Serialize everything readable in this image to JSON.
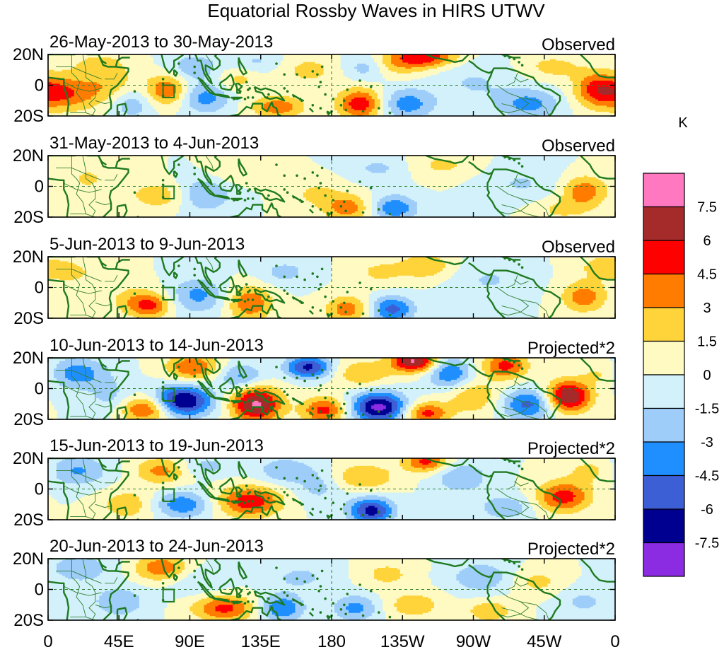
{
  "chart_data": {
    "type": "heatmap",
    "title": "Equatorial Rossby Waves in HIRS UTWV",
    "colorbar": {
      "unit": "K",
      "tick_labels": [
        "7.5",
        "6",
        "4.5",
        "3",
        "1.5",
        "0",
        "-1.5",
        "-3",
        "-4.5",
        "-6",
        "-7.5"
      ],
      "levels": [
        -7.5,
        -6,
        -4.5,
        -3,
        -1.5,
        0,
        1.5,
        3,
        4.5,
        6,
        7.5
      ],
      "colors": [
        "#8b2be2",
        "#000090",
        "#3c5fd6",
        "#1f8fff",
        "#9fcdfa",
        "#d2f1fa",
        "#fffac2",
        "#ffd43a",
        "#ff7c00",
        "#ff0000",
        "#a52a2a",
        "#ff78c0"
      ]
    },
    "x_tick_labels": [
      "0",
      "45E",
      "90E",
      "135E",
      "180",
      "135W",
      "90W",
      "45W",
      "0"
    ],
    "x_ticks_deg": [
      0,
      45,
      90,
      135,
      180,
      225,
      270,
      315,
      360
    ],
    "y_tick_labels": [
      "20N",
      "0",
      "20S"
    ],
    "ylim_deg": [
      -20,
      20
    ],
    "panels": [
      {
        "date": "26-May-2013 to 30-May-2013",
        "kind": "Observed",
        "blobs": [
          {
            "lon": 8,
            "lat": -5,
            "v": 4.8,
            "wl": 16,
            "wt": 8
          },
          {
            "lon": 40,
            "lat": 0,
            "v": 2.2,
            "wl": 12,
            "wt": 10
          },
          {
            "lon": 52,
            "lat": -12,
            "v": -2.8,
            "wl": 10,
            "wt": 7
          },
          {
            "lon": 30,
            "lat": 14,
            "v": 1.5,
            "wl": 14,
            "wt": 6
          },
          {
            "lon": 75,
            "lat": -3,
            "v": 4.5,
            "wl": 9,
            "wt": 7
          },
          {
            "lon": 93,
            "lat": 12,
            "v": -2.6,
            "wl": 12,
            "wt": 6
          },
          {
            "lon": 100,
            "lat": -8,
            "v": -3.6,
            "wl": 11,
            "wt": 7
          },
          {
            "lon": 120,
            "lat": 4,
            "v": 2.0,
            "wl": 10,
            "wt": 6
          },
          {
            "lon": 146,
            "lat": -14,
            "v": 4.0,
            "wl": 12,
            "wt": 5
          },
          {
            "lon": 132,
            "lat": 15,
            "v": -1.8,
            "wl": 12,
            "wt": 5
          },
          {
            "lon": 165,
            "lat": 10,
            "v": 2.0,
            "wl": 14,
            "wt": 7
          },
          {
            "lon": 198,
            "lat": -12,
            "v": 5.6,
            "wl": 10,
            "wt": 7
          },
          {
            "lon": 202,
            "lat": 12,
            "v": -2.8,
            "wl": 10,
            "wt": 6
          },
          {
            "lon": 220,
            "lat": 14,
            "v": 2.6,
            "wl": 14,
            "wt": 6
          },
          {
            "lon": 240,
            "lat": 19,
            "v": 5.2,
            "wl": 14,
            "wt": 5
          },
          {
            "lon": 228,
            "lat": -12,
            "v": -3.8,
            "wl": 12,
            "wt": 7
          },
          {
            "lon": 270,
            "lat": 2,
            "v": -1.6,
            "wl": 18,
            "wt": 10
          },
          {
            "lon": 305,
            "lat": -12,
            "v": -3.5,
            "wl": 14,
            "wt": 7
          },
          {
            "lon": 348,
            "lat": -2,
            "v": 3.8,
            "wl": 10,
            "wt": 8
          },
          {
            "lon": 320,
            "lat": 12,
            "v": 2.0,
            "wl": 14,
            "wt": 6
          }
        ]
      },
      {
        "date": "31-May-2013 to 4-Jun-2013",
        "kind": "Observed",
        "blobs": [
          {
            "lon": 25,
            "lat": 5,
            "v": 1.6,
            "wl": 16,
            "wt": 10
          },
          {
            "lon": 70,
            "lat": -6,
            "v": 2.6,
            "wl": 12,
            "wt": 6
          },
          {
            "lon": 100,
            "lat": -5,
            "v": -3.0,
            "wl": 12,
            "wt": 8
          },
          {
            "lon": 118,
            "lat": 10,
            "v": 1.6,
            "wl": 12,
            "wt": 6
          },
          {
            "lon": 170,
            "lat": -5,
            "v": 1.8,
            "wl": 12,
            "wt": 7
          },
          {
            "lon": 190,
            "lat": -14,
            "v": 3.8,
            "wl": 10,
            "wt": 6
          },
          {
            "lon": 210,
            "lat": 12,
            "v": -1.8,
            "wl": 14,
            "wt": 6
          },
          {
            "lon": 220,
            "lat": -14,
            "v": -4.2,
            "wl": 10,
            "wt": 6
          },
          {
            "lon": 250,
            "lat": 14,
            "v": 1.8,
            "wl": 16,
            "wt": 6
          },
          {
            "lon": 300,
            "lat": 2,
            "v": -1.6,
            "wl": 18,
            "wt": 9
          },
          {
            "lon": 340,
            "lat": -3,
            "v": 4.0,
            "wl": 10,
            "wt": 7
          },
          {
            "lon": 325,
            "lat": -15,
            "v": 1.8,
            "wl": 14,
            "wt": 5
          }
        ]
      },
      {
        "date": "5-Jun-2013 to 9-Jun-2013",
        "kind": "Observed",
        "blobs": [
          {
            "lon": 15,
            "lat": 10,
            "v": 1.7,
            "wl": 14,
            "wt": 8
          },
          {
            "lon": 55,
            "lat": -8,
            "v": 2.2,
            "wl": 12,
            "wt": 7
          },
          {
            "lon": 65,
            "lat": -12,
            "v": 3.9,
            "wl": 9,
            "wt": 5
          },
          {
            "lon": 95,
            "lat": -5,
            "v": -3.4,
            "wl": 12,
            "wt": 8
          },
          {
            "lon": 128,
            "lat": -10,
            "v": 4.3,
            "wl": 10,
            "wt": 8
          },
          {
            "lon": 150,
            "lat": 10,
            "v": -2.0,
            "wl": 12,
            "wt": 6
          },
          {
            "lon": 190,
            "lat": -14,
            "v": 3.9,
            "wl": 10,
            "wt": 6
          },
          {
            "lon": 218,
            "lat": -14,
            "v": -5.0,
            "wl": 10,
            "wt": 6
          },
          {
            "lon": 210,
            "lat": 10,
            "v": 1.8,
            "wl": 12,
            "wt": 6
          },
          {
            "lon": 240,
            "lat": 14,
            "v": 2.8,
            "wl": 12,
            "wt": 6
          },
          {
            "lon": 280,
            "lat": 5,
            "v": -1.6,
            "wl": 18,
            "wt": 9
          },
          {
            "lon": 340,
            "lat": -6,
            "v": 3.9,
            "wl": 10,
            "wt": 7
          },
          {
            "lon": 350,
            "lat": 14,
            "v": 1.8,
            "wl": 12,
            "wt": 6
          }
        ]
      },
      {
        "date": "10-Jun-2013 to 14-Jun-2013",
        "kind": "Projected*2",
        "blobs": [
          {
            "lon": 18,
            "lat": 10,
            "v": -4.0,
            "wl": 14,
            "wt": 7
          },
          {
            "lon": 40,
            "lat": -6,
            "v": -2.0,
            "wl": 10,
            "wt": 8
          },
          {
            "lon": 62,
            "lat": -13,
            "v": 5.2,
            "wl": 12,
            "wt": 6
          },
          {
            "lon": 85,
            "lat": -8,
            "v": -8.0,
            "wl": 13,
            "wt": 7
          },
          {
            "lon": 92,
            "lat": 14,
            "v": 4.5,
            "wl": 12,
            "wt": 6
          },
          {
            "lon": 122,
            "lat": 8,
            "v": -3.5,
            "wl": 10,
            "wt": 6
          },
          {
            "lon": 132,
            "lat": -10,
            "v": 7.8,
            "wl": 11,
            "wt": 8
          },
          {
            "lon": 165,
            "lat": 14,
            "v": -6.4,
            "wl": 10,
            "wt": 5
          },
          {
            "lon": 175,
            "lat": -14,
            "v": 5.0,
            "wl": 10,
            "wt": 6
          },
          {
            "lon": 210,
            "lat": -12,
            "v": -8.0,
            "wl": 12,
            "wt": 7
          },
          {
            "lon": 200,
            "lat": 10,
            "v": 3.0,
            "wl": 12,
            "wt": 6
          },
          {
            "lon": 232,
            "lat": 18,
            "v": 7.7,
            "wl": 10,
            "wt": 5
          },
          {
            "lon": 240,
            "lat": -16,
            "v": 5.0,
            "wl": 10,
            "wt": 5
          },
          {
            "lon": 255,
            "lat": 10,
            "v": -4.5,
            "wl": 10,
            "wt": 7
          },
          {
            "lon": 270,
            "lat": -5,
            "v": 2.8,
            "wl": 12,
            "wt": 8
          },
          {
            "lon": 290,
            "lat": 15,
            "v": 5.0,
            "wl": 10,
            "wt": 6
          },
          {
            "lon": 305,
            "lat": -10,
            "v": -5.0,
            "wl": 12,
            "wt": 7
          },
          {
            "lon": 330,
            "lat": -5,
            "v": 7.8,
            "wl": 10,
            "wt": 7
          },
          {
            "lon": 352,
            "lat": 10,
            "v": 2.0,
            "wl": 10,
            "wt": 6
          }
        ]
      },
      {
        "date": "15-Jun-2013 to 19-Jun-2013",
        "kind": "Projected*2",
        "blobs": [
          {
            "lon": 18,
            "lat": 12,
            "v": -3.2,
            "wl": 14,
            "wt": 7
          },
          {
            "lon": 50,
            "lat": -10,
            "v": 2.5,
            "wl": 12,
            "wt": 7
          },
          {
            "lon": 72,
            "lat": 12,
            "v": 3.5,
            "wl": 12,
            "wt": 6
          },
          {
            "lon": 85,
            "lat": -10,
            "v": -4.2,
            "wl": 12,
            "wt": 6
          },
          {
            "lon": 100,
            "lat": 15,
            "v": -2.0,
            "wl": 12,
            "wt": 5
          },
          {
            "lon": 128,
            "lat": -8,
            "v": 5.5,
            "wl": 14,
            "wt": 7
          },
          {
            "lon": 150,
            "lat": 12,
            "v": -2.8,
            "wl": 12,
            "wt": 6
          },
          {
            "lon": 172,
            "lat": 2,
            "v": -2.0,
            "wl": 10,
            "wt": 8
          },
          {
            "lon": 205,
            "lat": -14,
            "v": -6.6,
            "wl": 10,
            "wt": 6
          },
          {
            "lon": 200,
            "lat": 8,
            "v": 3.0,
            "wl": 14,
            "wt": 6
          },
          {
            "lon": 240,
            "lat": 18,
            "v": 5.0,
            "wl": 10,
            "wt": 5
          },
          {
            "lon": 262,
            "lat": 8,
            "v": -3.0,
            "wl": 12,
            "wt": 7
          },
          {
            "lon": 290,
            "lat": -12,
            "v": -2.6,
            "wl": 12,
            "wt": 6
          },
          {
            "lon": 327,
            "lat": -5,
            "v": 5.3,
            "wl": 12,
            "wt": 7
          },
          {
            "lon": 345,
            "lat": 12,
            "v": 2.0,
            "wl": 12,
            "wt": 6
          }
        ]
      },
      {
        "date": "20-Jun-2013 to 24-Jun-2013",
        "kind": "Projected*2",
        "blobs": [
          {
            "lon": 20,
            "lat": 14,
            "v": -2.6,
            "wl": 14,
            "wt": 7
          },
          {
            "lon": 45,
            "lat": -8,
            "v": -2.8,
            "wl": 12,
            "wt": 7
          },
          {
            "lon": 72,
            "lat": 14,
            "v": 4.2,
            "wl": 12,
            "wt": 6
          },
          {
            "lon": 95,
            "lat": 5,
            "v": -1.6,
            "wl": 14,
            "wt": 7
          },
          {
            "lon": 112,
            "lat": -12,
            "v": 5.0,
            "wl": 14,
            "wt": 6
          },
          {
            "lon": 148,
            "lat": -12,
            "v": -4.6,
            "wl": 10,
            "wt": 6
          },
          {
            "lon": 160,
            "lat": 8,
            "v": -1.8,
            "wl": 16,
            "wt": 7
          },
          {
            "lon": 195,
            "lat": -12,
            "v": -3.5,
            "wl": 10,
            "wt": 6
          },
          {
            "lon": 215,
            "lat": 10,
            "v": 2.0,
            "wl": 12,
            "wt": 6
          },
          {
            "lon": 232,
            "lat": -10,
            "v": 2.6,
            "wl": 12,
            "wt": 6
          },
          {
            "lon": 275,
            "lat": 8,
            "v": -2.8,
            "wl": 14,
            "wt": 7
          },
          {
            "lon": 280,
            "lat": -14,
            "v": 2.8,
            "wl": 10,
            "wt": 5
          },
          {
            "lon": 310,
            "lat": 5,
            "v": 2.0,
            "wl": 12,
            "wt": 6
          },
          {
            "lon": 340,
            "lat": -8,
            "v": -1.8,
            "wl": 12,
            "wt": 7
          }
        ]
      }
    ]
  }
}
